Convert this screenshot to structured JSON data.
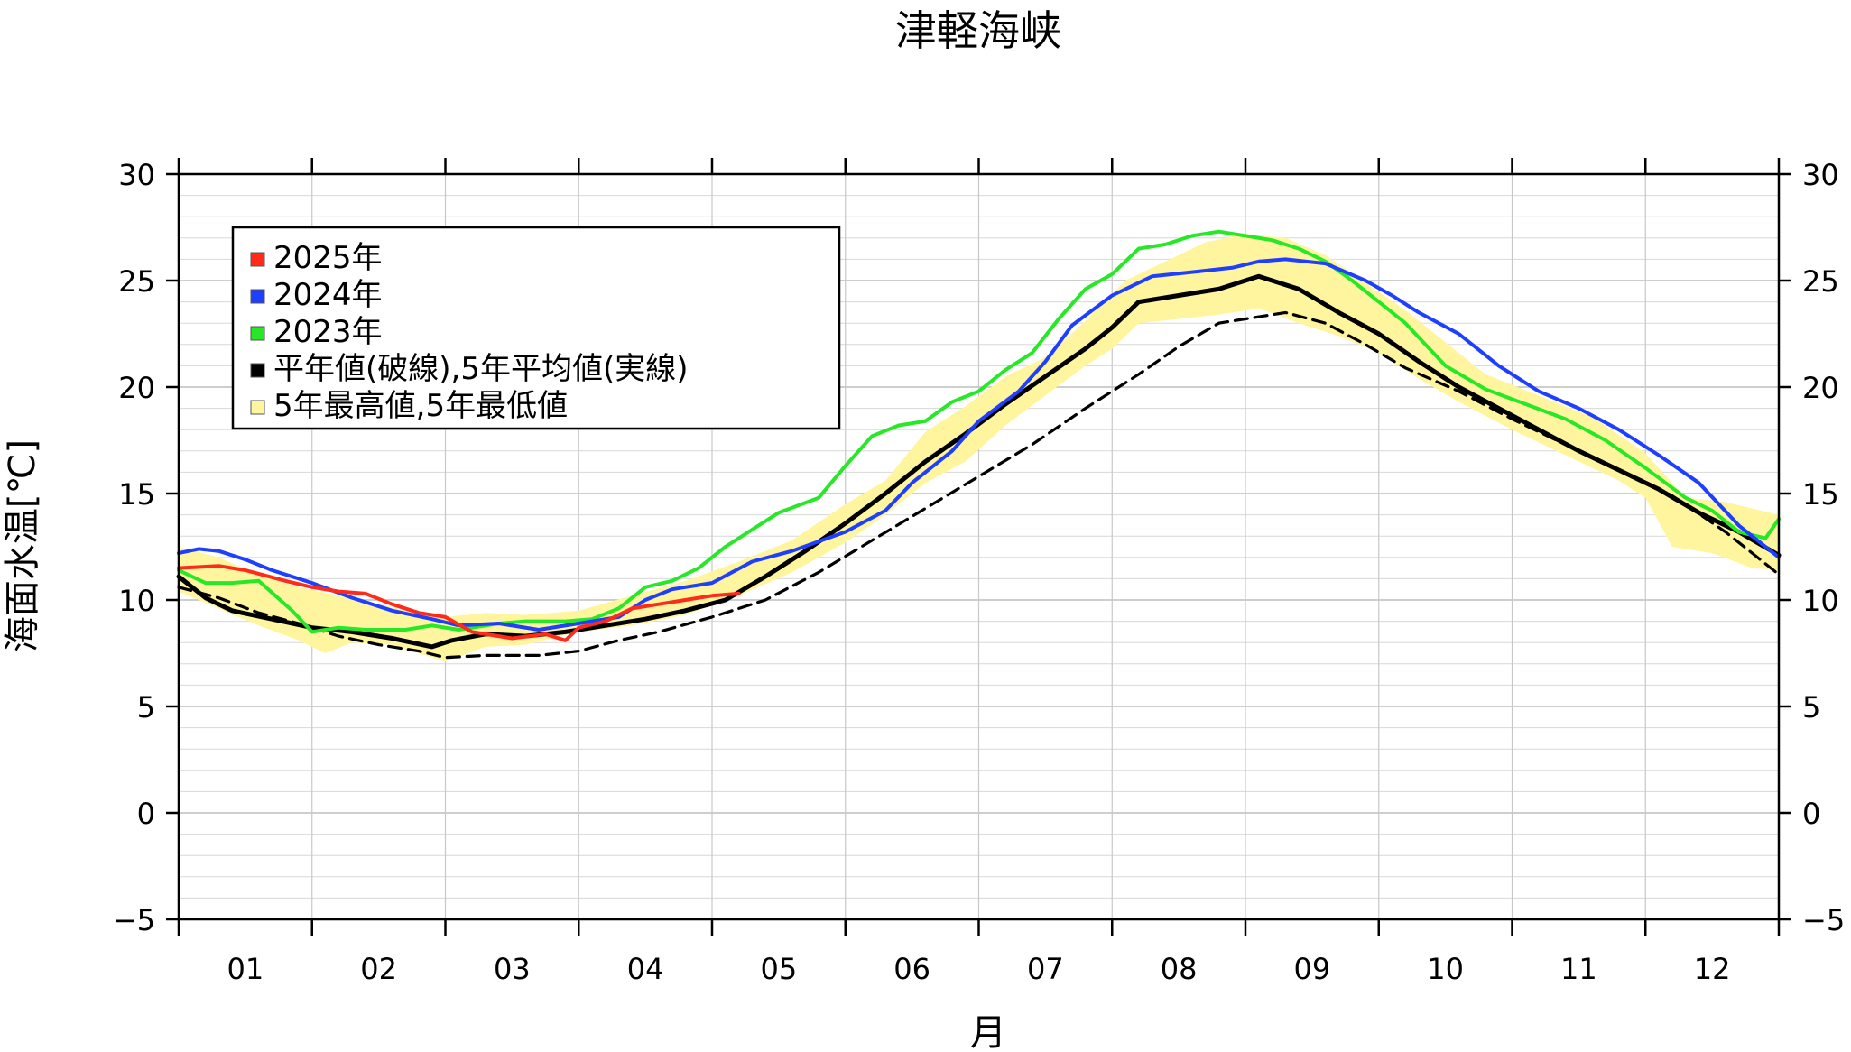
{
  "chart_data": {
    "type": "line",
    "title": "津軽海峡",
    "xlabel": "月",
    "ylabel": "海面水温[℃]",
    "ylim": [
      -5,
      30
    ],
    "xlim": [
      0,
      12
    ],
    "x_unit": "month",
    "y_ticks": [
      -5,
      0,
      5,
      10,
      15,
      20,
      25,
      30
    ],
    "y_tick_labels": [
      "−5",
      "0",
      "5",
      "10",
      "15",
      "20",
      "25",
      "30"
    ],
    "x_tick_labels": [
      "01",
      "02",
      "03",
      "04",
      "05",
      "06",
      "07",
      "08",
      "09",
      "10",
      "11",
      "12"
    ],
    "grid": true,
    "legend_position": "top-left",
    "legend": [
      {
        "label": "2025年",
        "color": "#ff2a1a"
      },
      {
        "label": "2024年",
        "color": "#1f3fff"
      },
      {
        "label": "2023年",
        "color": "#27e827"
      },
      {
        "label": "平年値(破線),5年平均値(実線)",
        "color": "#000000"
      },
      {
        "label": "5年最高値,5年最低値",
        "color": "#fff59f"
      }
    ],
    "series": [
      {
        "name": "2025年",
        "color": "#ff2a1a",
        "x": [
          0.0,
          0.3,
          0.5,
          0.8,
          1.0,
          1.2,
          1.4,
          1.6,
          1.8,
          2.0,
          2.2,
          2.5,
          2.75,
          2.9,
          3.0,
          3.2,
          3.4,
          3.6,
          3.8,
          4.0,
          4.2
        ],
        "y": [
          11.5,
          11.6,
          11.4,
          10.9,
          10.6,
          10.4,
          10.3,
          9.8,
          9.4,
          9.2,
          8.5,
          8.2,
          8.4,
          8.1,
          8.7,
          9.0,
          9.6,
          9.8,
          10.0,
          10.2,
          10.3
        ]
      },
      {
        "name": "2024年",
        "color": "#1f3fff",
        "x": [
          0.0,
          0.15,
          0.3,
          0.5,
          0.7,
          1.0,
          1.3,
          1.6,
          1.9,
          2.1,
          2.4,
          2.7,
          3.0,
          3.3,
          3.5,
          3.7,
          4.0,
          4.3,
          4.6,
          5.0,
          5.3,
          5.5,
          5.8,
          6.0,
          6.3,
          6.5,
          6.7,
          7.0,
          7.3,
          7.6,
          7.9,
          8.1,
          8.3,
          8.6,
          8.9,
          9.1,
          9.3,
          9.6,
          9.9,
          10.2,
          10.5,
          10.8,
          11.1,
          11.4,
          11.7,
          12.0
        ],
        "y": [
          12.2,
          12.4,
          12.3,
          11.9,
          11.4,
          10.8,
          10.1,
          9.5,
          9.1,
          8.8,
          8.9,
          8.6,
          8.9,
          9.2,
          10.0,
          10.5,
          10.8,
          11.8,
          12.3,
          13.2,
          14.2,
          15.5,
          17.0,
          18.4,
          19.8,
          21.2,
          22.9,
          24.3,
          25.2,
          25.4,
          25.6,
          25.9,
          26.0,
          25.8,
          25.0,
          24.3,
          23.5,
          22.5,
          21.0,
          19.8,
          19.0,
          18.0,
          16.8,
          15.5,
          13.5,
          12.0
        ]
      },
      {
        "name": "2023年",
        "color": "#27e827",
        "x": [
          0.0,
          0.2,
          0.4,
          0.6,
          0.85,
          1.0,
          1.2,
          1.4,
          1.7,
          1.9,
          2.1,
          2.4,
          2.6,
          2.9,
          3.1,
          3.3,
          3.5,
          3.7,
          3.9,
          4.1,
          4.3,
          4.5,
          4.8,
          5.0,
          5.2,
          5.4,
          5.6,
          5.8,
          6.0,
          6.2,
          6.4,
          6.6,
          6.8,
          7.0,
          7.2,
          7.4,
          7.6,
          7.8,
          8.0,
          8.2,
          8.4,
          8.6,
          8.8,
          9.0,
          9.2,
          9.5,
          9.8,
          10.1,
          10.4,
          10.7,
          11.0,
          11.3,
          11.5,
          11.7,
          11.9,
          12.0
        ],
        "y": [
          11.4,
          10.8,
          10.8,
          10.9,
          9.5,
          8.5,
          8.7,
          8.6,
          8.6,
          8.8,
          8.6,
          8.9,
          9.0,
          9.0,
          9.1,
          9.6,
          10.6,
          10.9,
          11.5,
          12.5,
          13.3,
          14.1,
          14.8,
          16.3,
          17.7,
          18.2,
          18.4,
          19.3,
          19.8,
          20.8,
          21.6,
          23.2,
          24.6,
          25.3,
          26.5,
          26.7,
          27.1,
          27.3,
          27.1,
          26.9,
          26.5,
          25.9,
          25.0,
          24.0,
          23.0,
          21.0,
          19.9,
          19.2,
          18.5,
          17.5,
          16.2,
          14.8,
          14.2,
          13.2,
          12.9,
          13.8
        ]
      },
      {
        "name": "5年平均値",
        "color": "#000000",
        "style": "solid",
        "x": [
          0.0,
          0.2,
          0.4,
          0.7,
          1.0,
          1.3,
          1.6,
          1.9,
          2.05,
          2.3,
          2.6,
          2.9,
          3.2,
          3.5,
          3.8,
          4.1,
          4.4,
          4.7,
          5.0,
          5.3,
          5.6,
          5.9,
          6.2,
          6.5,
          6.8,
          7.0,
          7.2,
          7.5,
          7.8,
          8.1,
          8.4,
          8.7,
          9.0,
          9.3,
          9.6,
          9.9,
          10.2,
          10.5,
          10.8,
          11.1,
          11.4,
          11.7,
          12.0
        ],
        "y": [
          11.1,
          10.1,
          9.5,
          9.1,
          8.7,
          8.5,
          8.2,
          7.8,
          8.1,
          8.4,
          8.3,
          8.5,
          8.8,
          9.1,
          9.5,
          10.0,
          11.1,
          12.3,
          13.6,
          15.0,
          16.5,
          17.8,
          19.2,
          20.5,
          21.8,
          22.8,
          24.0,
          24.3,
          24.6,
          25.2,
          24.6,
          23.5,
          22.5,
          21.2,
          20.0,
          19.0,
          18.0,
          17.0,
          16.1,
          15.2,
          14.1,
          13.2,
          12.1
        ]
      },
      {
        "name": "平年値",
        "color": "#000000",
        "style": "dashed",
        "x": [
          0.0,
          0.3,
          0.6,
          0.9,
          1.2,
          1.5,
          1.8,
          2.0,
          2.3,
          2.7,
          3.0,
          3.3,
          3.6,
          4.0,
          4.4,
          4.8,
          5.2,
          5.6,
          6.0,
          6.4,
          6.8,
          7.2,
          7.5,
          7.8,
          8.0,
          8.3,
          8.6,
          8.9,
          9.2,
          9.6,
          10.0,
          10.4,
          10.8,
          11.2,
          11.6,
          12.0
        ],
        "y": [
          10.6,
          10.1,
          9.4,
          8.9,
          8.3,
          7.9,
          7.6,
          7.3,
          7.4,
          7.4,
          7.6,
          8.1,
          8.5,
          9.2,
          10.0,
          11.3,
          12.8,
          14.3,
          15.8,
          17.3,
          19.0,
          20.6,
          21.9,
          23.0,
          23.2,
          23.5,
          23.0,
          22.0,
          20.9,
          19.8,
          18.5,
          17.3,
          16.1,
          14.9,
          13.2,
          11.2
        ]
      },
      {
        "name": "5年最高値",
        "color": "#fff59f",
        "x": [
          0.0,
          0.3,
          0.6,
          0.9,
          1.2,
          1.5,
          1.8,
          2.0,
          2.3,
          2.6,
          3.0,
          3.4,
          3.8,
          4.2,
          4.6,
          5.0,
          5.3,
          5.6,
          5.9,
          6.2,
          6.5,
          6.8,
          7.1,
          7.4,
          7.7,
          8.0,
          8.3,
          8.6,
          8.9,
          9.2,
          9.5,
          9.8,
          10.2,
          10.6,
          11.0,
          11.3,
          11.6,
          12.0
        ],
        "y": [
          12.5,
          12.0,
          11.2,
          10.6,
          10.2,
          9.8,
          9.4,
          9.2,
          9.4,
          9.3,
          9.5,
          10.2,
          10.9,
          11.8,
          12.8,
          14.5,
          15.6,
          17.9,
          19.1,
          20.5,
          21.4,
          23.1,
          25.0,
          25.9,
          26.8,
          27.2,
          27.0,
          26.2,
          24.9,
          23.6,
          22.1,
          20.6,
          19.6,
          18.6,
          16.9,
          14.8,
          14.6,
          14.0
        ]
      },
      {
        "name": "5年最低値",
        "color": "#fff59f",
        "x": [
          0.0,
          0.3,
          0.6,
          0.9,
          1.1,
          1.3,
          1.6,
          1.8,
          2.0,
          2.3,
          2.6,
          3.0,
          3.4,
          3.8,
          4.2,
          4.6,
          5.0,
          5.3,
          5.6,
          5.9,
          6.2,
          6.5,
          6.8,
          7.0,
          7.2,
          7.5,
          7.8,
          8.1,
          8.4,
          8.7,
          9.0,
          9.3,
          9.6,
          10.0,
          10.4,
          10.8,
          11.0,
          11.2,
          11.5,
          11.8,
          12.0
        ],
        "y": [
          10.4,
          9.6,
          8.8,
          8.1,
          7.5,
          8.0,
          7.9,
          7.5,
          7.1,
          7.8,
          7.9,
          8.5,
          8.8,
          9.3,
          10.2,
          11.3,
          12.7,
          14.0,
          15.5,
          16.5,
          18.2,
          19.6,
          21.0,
          21.8,
          23.0,
          23.2,
          23.4,
          23.7,
          23.0,
          22.4,
          21.6,
          20.4,
          19.3,
          18.0,
          16.8,
          15.6,
          14.8,
          12.5,
          12.2,
          11.5,
          11.4
        ]
      }
    ]
  }
}
